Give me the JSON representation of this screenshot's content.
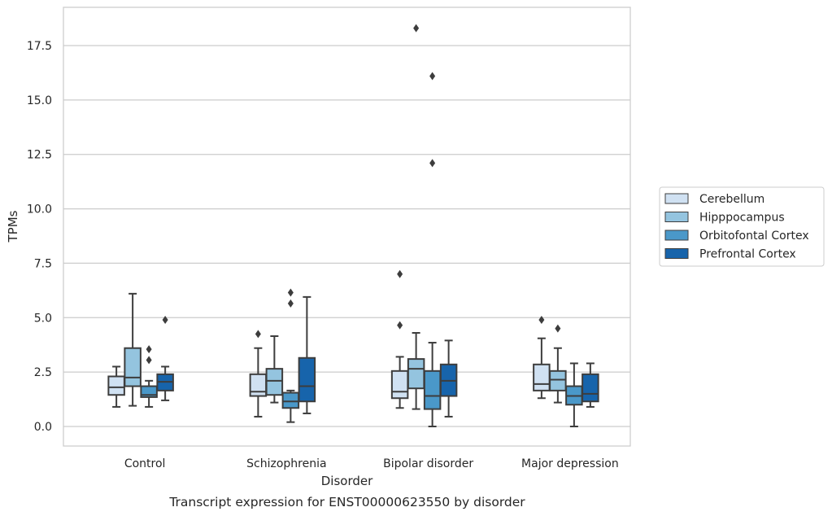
{
  "chart_data": {
    "type": "box",
    "title": "",
    "caption": "Transcript expression for ENST00000623550 by disorder",
    "xlabel": "Disorder",
    "ylabel": "TPMs",
    "ylim": [
      -0.9,
      19.2
    ],
    "yticks": [
      0.0,
      2.5,
      5.0,
      7.5,
      10.0,
      12.5,
      15.0,
      17.5
    ],
    "ytick_labels": [
      "0.0",
      "2.5",
      "5.0",
      "7.5",
      "10.0",
      "12.5",
      "15.0",
      "17.5"
    ],
    "grid": "horizontal",
    "legend_position": "outside-right",
    "categories": [
      "Control",
      "Schizophrenia",
      "Bipolar disorder",
      "Major depression"
    ],
    "series": [
      {
        "name": "Cerebellum",
        "color": "#d0e1f2",
        "boxes": [
          {
            "whisker_low": 0.9,
            "q1": 1.45,
            "median": 1.8,
            "q3": 2.3,
            "whisker_high": 2.75,
            "outliers": []
          },
          {
            "whisker_low": 0.45,
            "q1": 1.4,
            "median": 1.6,
            "q3": 2.4,
            "whisker_high": 3.6,
            "outliers": [
              4.25
            ]
          },
          {
            "whisker_low": 0.85,
            "q1": 1.3,
            "median": 1.6,
            "q3": 2.55,
            "whisker_high": 3.2,
            "outliers": [
              4.65,
              7.0
            ]
          },
          {
            "whisker_low": 1.3,
            "q1": 1.65,
            "median": 1.95,
            "q3": 2.85,
            "whisker_high": 4.05,
            "outliers": [
              4.9
            ]
          }
        ]
      },
      {
        "name": "Hipppocampus",
        "color": "#94c4df",
        "boxes": [
          {
            "whisker_low": 0.95,
            "q1": 1.85,
            "median": 2.25,
            "q3": 3.6,
            "whisker_high": 6.1,
            "outliers": []
          },
          {
            "whisker_low": 1.1,
            "q1": 1.45,
            "median": 2.1,
            "q3": 2.65,
            "whisker_high": 4.15,
            "outliers": []
          },
          {
            "whisker_low": 0.8,
            "q1": 1.75,
            "median": 2.65,
            "q3": 3.1,
            "whisker_high": 4.3,
            "outliers": [
              18.3
            ]
          },
          {
            "whisker_low": 1.1,
            "q1": 1.65,
            "median": 2.15,
            "q3": 2.55,
            "whisker_high": 3.6,
            "outliers": [
              4.5
            ]
          }
        ]
      },
      {
        "name": "Orbitofontal Cortex",
        "color": "#4a98c9",
        "boxes": [
          {
            "whisker_low": 0.9,
            "q1": 1.35,
            "median": 1.45,
            "q3": 1.85,
            "whisker_high": 2.1,
            "outliers": [
              3.05,
              3.55
            ]
          },
          {
            "whisker_low": 0.2,
            "q1": 0.85,
            "median": 1.15,
            "q3": 1.55,
            "whisker_high": 1.65,
            "outliers": [
              5.65,
              6.15
            ]
          },
          {
            "whisker_low": 0.0,
            "q1": 0.8,
            "median": 1.4,
            "q3": 2.55,
            "whisker_high": 3.85,
            "outliers": [
              12.1,
              16.1
            ]
          },
          {
            "whisker_low": 0.0,
            "q1": 1.0,
            "median": 1.4,
            "q3": 1.85,
            "whisker_high": 2.9,
            "outliers": []
          }
        ]
      },
      {
        "name": "Prefrontal Cortex",
        "color": "#1764ab",
        "boxes": [
          {
            "whisker_low": 1.2,
            "q1": 1.65,
            "median": 2.05,
            "q3": 2.4,
            "whisker_high": 2.75,
            "outliers": [
              4.9
            ]
          },
          {
            "whisker_low": 0.6,
            "q1": 1.15,
            "median": 1.85,
            "q3": 3.15,
            "whisker_high": 5.95,
            "outliers": []
          },
          {
            "whisker_low": 0.45,
            "q1": 1.4,
            "median": 2.1,
            "q3": 2.85,
            "whisker_high": 3.95,
            "outliers": []
          },
          {
            "whisker_low": 0.9,
            "q1": 1.15,
            "median": 1.5,
            "q3": 2.4,
            "whisker_high": 2.9,
            "outliers": []
          }
        ]
      }
    ]
  }
}
